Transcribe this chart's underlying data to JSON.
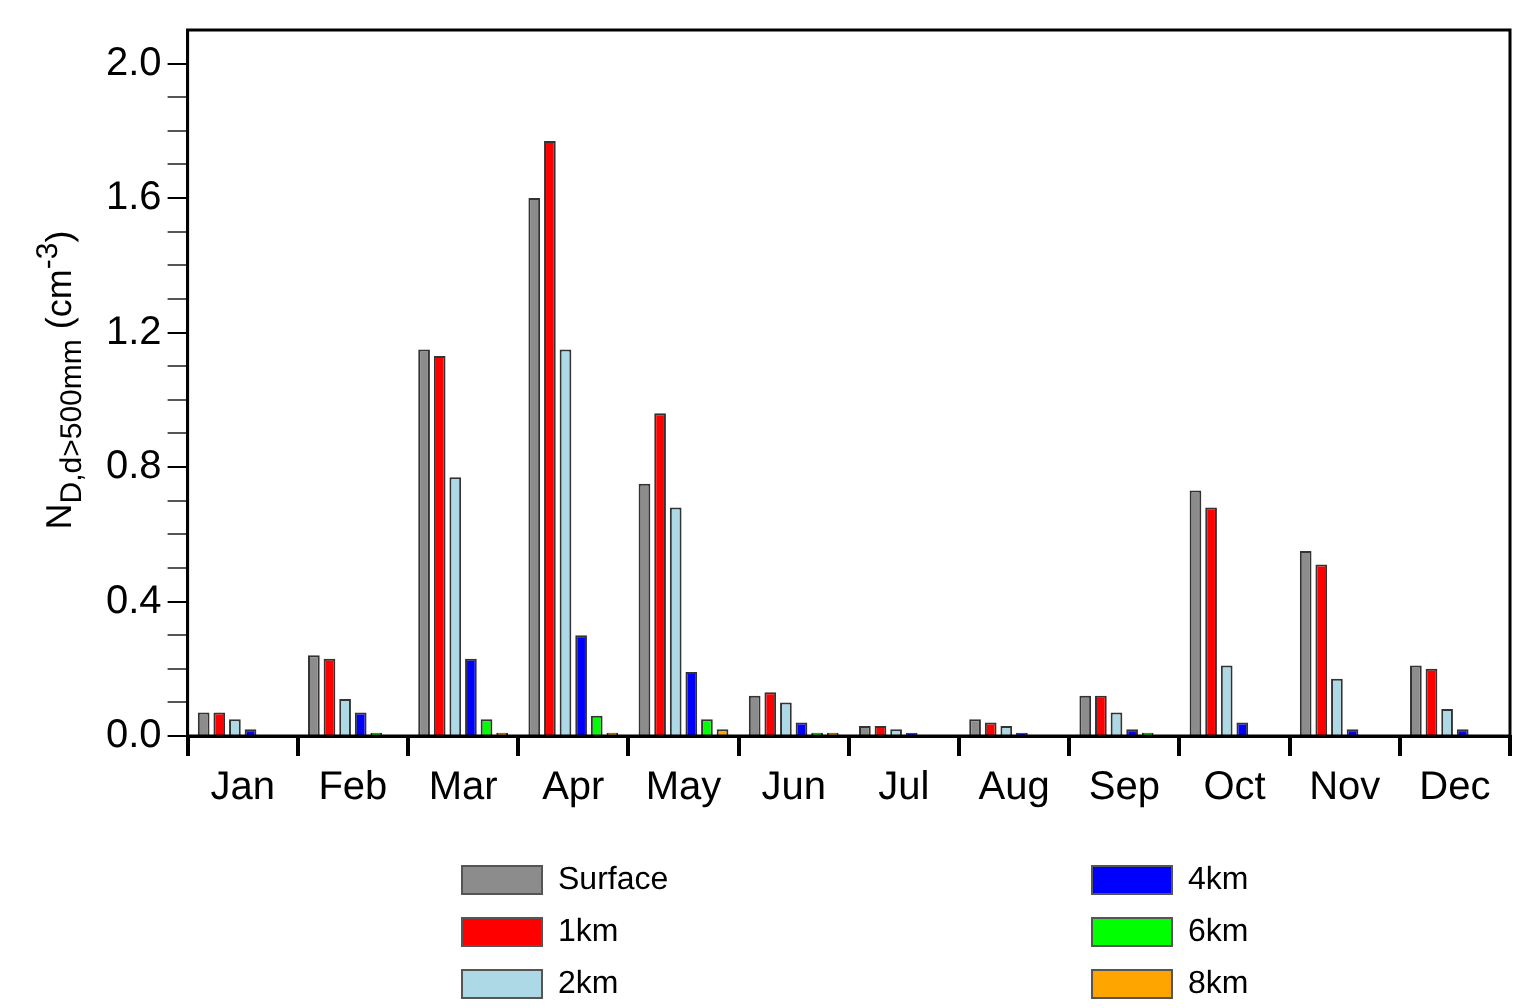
{
  "chart_data": {
    "type": "bar",
    "ylabel": "N$_{D,d>500mm}$ (cm$^{-3}$)",
    "categories": [
      "Jan",
      "Feb",
      "Mar",
      "Apr",
      "May",
      "Jun",
      "Jul",
      "Aug",
      "Sep",
      "Oct",
      "Nov",
      "Dec"
    ],
    "series": [
      {
        "name": "Surface",
        "color": "#8c8c8c",
        "values": [
          0.07,
          0.24,
          1.15,
          1.6,
          0.75,
          0.12,
          0.03,
          0.05,
          0.12,
          0.73,
          0.55,
          0.21
        ]
      },
      {
        "name": "1km",
        "color": "#ff0000",
        "values": [
          0.07,
          0.23,
          1.13,
          1.77,
          0.96,
          0.13,
          0.03,
          0.04,
          0.12,
          0.68,
          0.51,
          0.2
        ]
      },
      {
        "name": "2km",
        "color": "#add8e6",
        "values": [
          0.05,
          0.11,
          0.77,
          1.15,
          0.68,
          0.1,
          0.02,
          0.03,
          0.07,
          0.21,
          0.17,
          0.08
        ]
      },
      {
        "name": "4km",
        "color": "#0000ff",
        "values": [
          0.02,
          0.07,
          0.23,
          0.3,
          0.19,
          0.04,
          0.01,
          0.01,
          0.02,
          0.04,
          0.02,
          0.02
        ]
      },
      {
        "name": "6km",
        "color": "#00ff00",
        "values": [
          0,
          0.01,
          0.05,
          0.06,
          0.05,
          0.01,
          0,
          0,
          0.01,
          0,
          0,
          0
        ]
      },
      {
        "name": "8km",
        "color": "#ffa500",
        "values": [
          0,
          0,
          0.01,
          0.01,
          0.02,
          0.01,
          0,
          0,
          0,
          0,
          0,
          0
        ]
      }
    ],
    "ylim": [
      0,
      2.1
    ],
    "yticks": [
      {
        "value": 0,
        "label": "0.0"
      },
      {
        "value": 0.1,
        "label": null
      },
      {
        "value": 0.2,
        "label": null
      },
      {
        "value": 0.3,
        "label": null
      },
      0.4,
      {
        "value": 0.5,
        "label": null
      },
      {
        "value": 0.6,
        "label": null
      },
      {
        "value": 0.7,
        "label": null
      },
      0.8,
      {
        "value": 0.9,
        "label": null
      },
      {
        "value": 1.0,
        "label": null
      },
      {
        "value": 1.1,
        "label": null
      },
      1.2,
      {
        "value": 1.3,
        "label": null
      },
      {
        "value": 1.4,
        "label": null
      },
      {
        "value": 1.5,
        "label": null
      },
      1.6,
      {
        "value": 1.7,
        "label": null
      },
      {
        "value": 1.8,
        "label": null
      },
      {
        "value": 1.9,
        "label": null
      },
      {
        "value": 2,
        "label": "2.0"
      }
    ],
    "grid": false,
    "legend": "bottom"
  }
}
